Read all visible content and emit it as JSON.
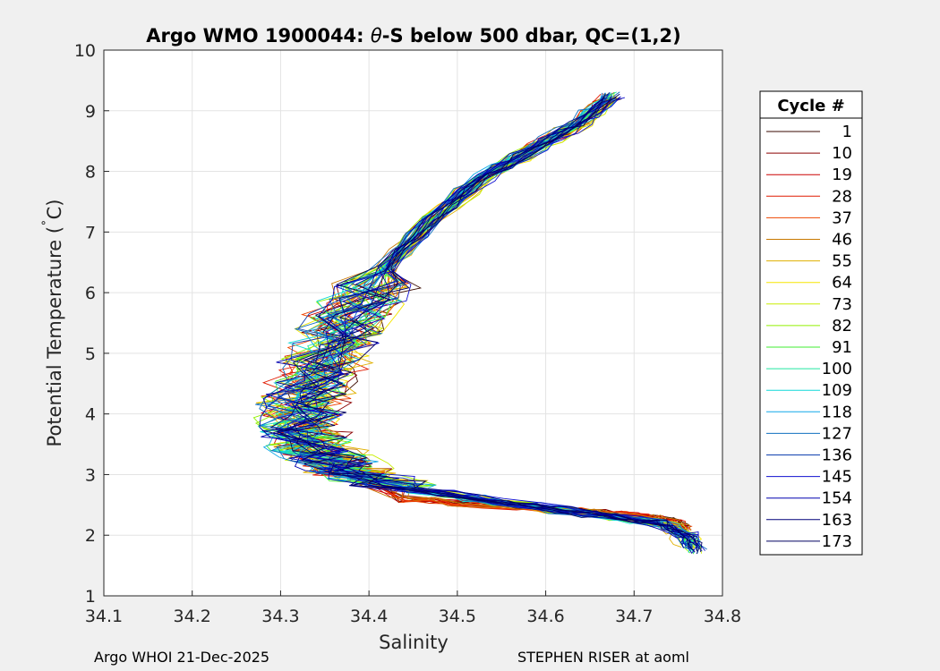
{
  "chart_data": {
    "type": "line",
    "title_parts": [
      "Argo WMO 1900044: ",
      "θ",
      "-S below 500 dbar,  QC=(1,2)"
    ],
    "xlabel": "Salinity",
    "ylabel": "Potential Temperature (",
    "ylabel_unit": "˚C)",
    "xlim": [
      34.1,
      34.8
    ],
    "ylim": [
      1,
      10
    ],
    "xticks": [
      "34.1",
      "34.2",
      "34.3",
      "34.4",
      "34.5",
      "34.6",
      "34.7",
      "34.8"
    ],
    "yticks": [
      "1",
      "2",
      "3",
      "4",
      "5",
      "6",
      "7",
      "8",
      "9",
      "10"
    ],
    "grid": true,
    "legend": {
      "title": "Cycle #",
      "placement": "right",
      "entries": [
        {
          "label": "1",
          "color": "#3a0a00"
        },
        {
          "label": "10",
          "color": "#8b0000"
        },
        {
          "label": "19",
          "color": "#cc0000"
        },
        {
          "label": "28",
          "color": "#e01a00"
        },
        {
          "label": "37",
          "color": "#ee4400"
        },
        {
          "label": "46",
          "color": "#c87800"
        },
        {
          "label": "55",
          "color": "#e0b000"
        },
        {
          "label": "64",
          "color": "#f5e600"
        },
        {
          "label": "73",
          "color": "#c8ee00"
        },
        {
          "label": "82",
          "color": "#90f000"
        },
        {
          "label": "91",
          "color": "#40ee30"
        },
        {
          "label": "100",
          "color": "#20e8a0"
        },
        {
          "label": "109",
          "color": "#10d8d8"
        },
        {
          "label": "118",
          "color": "#10a8e8"
        },
        {
          "label": "127",
          "color": "#1070c0"
        },
        {
          "label": "136",
          "color": "#1040b0"
        },
        {
          "label": "145",
          "color": "#1010d0"
        },
        {
          "label": "154",
          "color": "#0000b0"
        },
        {
          "label": "163",
          "color": "#00007a"
        },
        {
          "label": "173",
          "color": "#000060"
        }
      ]
    },
    "series_template": [
      [
        34.77,
        1.75
      ],
      [
        34.76,
        2.0
      ],
      [
        34.73,
        2.2
      ],
      [
        34.65,
        2.35
      ],
      [
        34.55,
        2.55
      ],
      [
        34.45,
        2.75
      ],
      [
        34.38,
        3.05
      ],
      [
        34.34,
        3.4
      ],
      [
        34.32,
        3.8
      ],
      [
        34.33,
        4.3
      ],
      [
        34.35,
        4.9
      ],
      [
        34.38,
        5.6
      ],
      [
        34.42,
        6.4
      ],
      [
        34.47,
        7.2
      ],
      [
        34.53,
        7.9
      ],
      [
        34.59,
        8.4
      ],
      [
        34.64,
        8.8
      ],
      [
        34.675,
        9.25
      ]
    ]
  },
  "footer": {
    "left": "Argo WHOI 21-Dec-2025",
    "right": "STEPHEN RISER at aoml"
  }
}
